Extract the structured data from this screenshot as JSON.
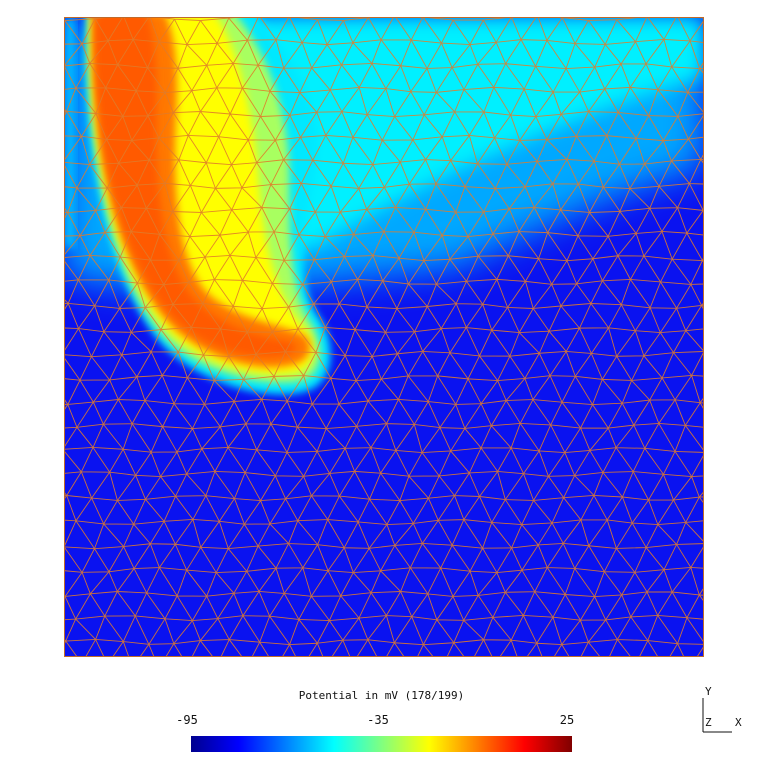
{
  "field": {
    "colormap": "jet",
    "mesh_color": "#e07b2a"
  },
  "legend": {
    "title": "Potential in mV (178/199)",
    "min_label": "-95",
    "mid_label": "-35",
    "max_label": "25"
  },
  "axes": {
    "y": "Y",
    "z": "Z",
    "x": "X"
  }
}
